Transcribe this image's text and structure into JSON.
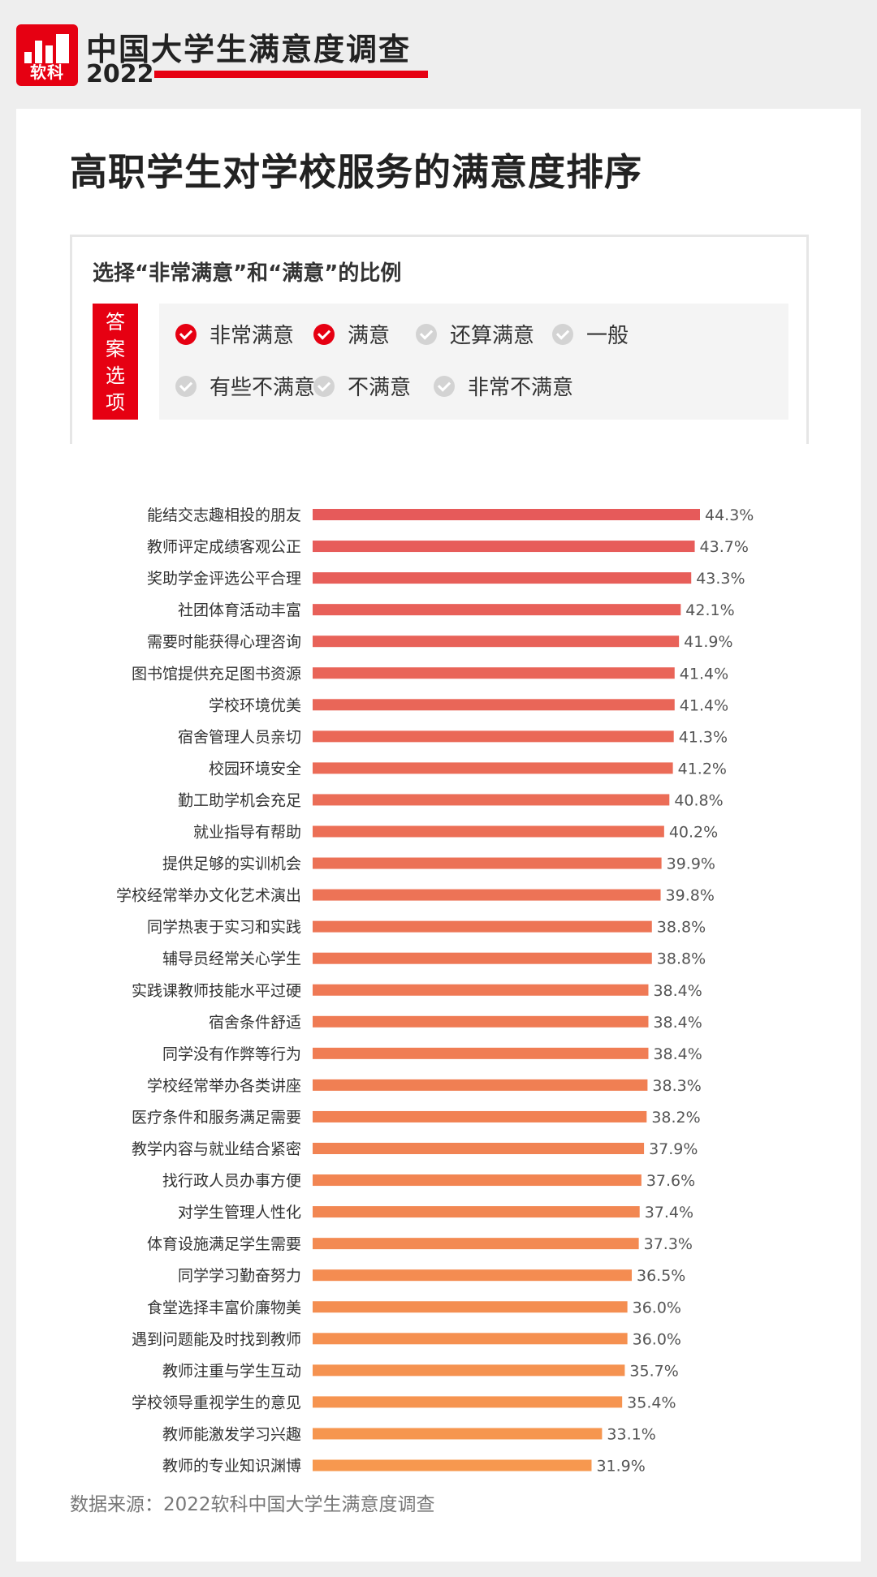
{
  "brand": {
    "logo_text": "软科",
    "title": "中国大学生满意度调查",
    "year": "2022",
    "accent_color": "#e60012"
  },
  "title": "高职学生对学校服务的满意度排序",
  "legend": {
    "subtitle": "选择“非常满意”和“满意”的比例",
    "tag": [
      "答",
      "案",
      "选",
      "项"
    ],
    "options": [
      {
        "label": "非常满意",
        "checked": true
      },
      {
        "label": "满意",
        "checked": true
      },
      {
        "label": "还算满意",
        "checked": false
      },
      {
        "label": "一般",
        "checked": false
      },
      {
        "label": "有些不满意",
        "checked": false
      },
      {
        "label": "不满意",
        "checked": false
      },
      {
        "label": "非常不满意",
        "checked": false
      }
    ]
  },
  "chart_data": {
    "type": "bar",
    "orientation": "horizontal",
    "color_gradient": [
      "#e65a5a",
      "#f7984f"
    ],
    "xlim": [
      0,
      50
    ],
    "categories": [
      "能结交志趣相投的朋友",
      "教师评定成绩客观公正",
      "奖助学金评选公平合理",
      "社团体育活动丰富",
      "需要时能获得心理咨询",
      "图书馆提供充足图书资源",
      "学校环境优美",
      "宿舍管理人员亲切",
      "校园环境安全",
      "勤工助学机会充足",
      "就业指导有帮助",
      "提供足够的实训机会",
      "学校经常举办文化艺术演出",
      "同学热衷于实习和实践",
      "辅导员经常关心学生",
      "实践课教师技能水平过硬",
      "宿舍条件舒适",
      "同学没有作弊等行为",
      "学校经常举办各类讲座",
      "医疗条件和服务满足需要",
      "教学内容与就业结合紧密",
      "找行政人员办事方便",
      "对学生管理人性化",
      "体育设施满足学生需要",
      "同学学习勤奋努力",
      "食堂选择丰富价廉物美",
      "遇到问题能及时找到教师",
      "教师注重与学生互动",
      "学校领导重视学生的意见",
      "教师能激发学习兴趣",
      "教师的专业知识渊博"
    ],
    "values": [
      44.3,
      43.7,
      43.3,
      42.1,
      41.9,
      41.4,
      41.4,
      41.3,
      41.2,
      40.8,
      40.2,
      39.9,
      39.8,
      38.8,
      38.8,
      38.4,
      38.4,
      38.4,
      38.3,
      38.2,
      37.9,
      37.6,
      37.4,
      37.3,
      36.5,
      36.0,
      36.0,
      35.7,
      35.4,
      33.1,
      31.9
    ],
    "value_labels": [
      "44.3%",
      "43.7%",
      "43.3%",
      "42.1%",
      "41.9%",
      "41.4%",
      "41.4%",
      "41.3%",
      "41.2%",
      "40.8%",
      "40.2%",
      "39.9%",
      "39.8%",
      "38.8%",
      "38.8%",
      "38.4%",
      "38.4%",
      "38.4%",
      "38.3%",
      "38.2%",
      "37.9%",
      "37.6%",
      "37.4%",
      "37.3%",
      "36.5%",
      "36.0%",
      "36.0%",
      "35.7%",
      "35.4%",
      "33.1%",
      "31.9%"
    ],
    "grid": false,
    "legend": "none"
  },
  "source": "数据来源：2022软科中国大学生满意度调查"
}
